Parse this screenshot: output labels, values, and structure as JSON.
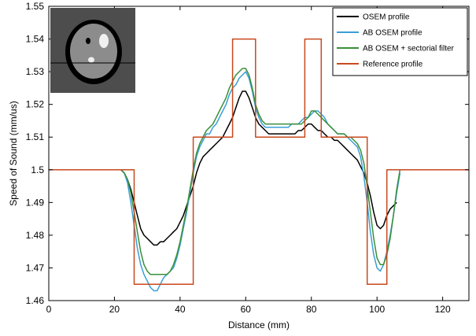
{
  "chart_data": {
    "type": "line",
    "title": "",
    "xlabel": "Distance (mm)",
    "ylabel": "Speed of Sound (mm/us)",
    "xlim": [
      0,
      128
    ],
    "ylim": [
      1.46,
      1.55
    ],
    "xticks": [
      0,
      20,
      40,
      60,
      80,
      100,
      120
    ],
    "yticks": [
      1.46,
      1.47,
      1.48,
      1.49,
      1.5,
      1.51,
      1.52,
      1.53,
      1.54,
      1.55
    ],
    "ytick_labels": [
      "1.46",
      "1.47",
      "1.48",
      "1.49",
      "1.5",
      "1.51",
      "1.52",
      "1.53",
      "1.54",
      "1.55"
    ],
    "grid": false,
    "legend_position": "top-right",
    "inset": "phantom-image",
    "series": [
      {
        "name": "OSEM profile",
        "color": "#000000",
        "x": [
          21,
          22,
          23,
          24,
          25,
          26,
          27,
          28,
          29,
          30,
          31,
          32,
          33,
          34,
          35,
          36,
          37,
          38,
          39,
          40,
          41,
          42,
          43,
          44,
          45,
          46,
          47,
          48,
          49,
          50,
          51,
          52,
          53,
          54,
          55,
          56,
          57,
          58,
          59,
          60,
          61,
          62,
          63,
          64,
          65,
          66,
          67,
          68,
          69,
          70,
          71,
          72,
          73,
          74,
          75,
          76,
          77,
          78,
          79,
          80,
          81,
          82,
          83,
          84,
          85,
          86,
          87,
          88,
          89,
          90,
          91,
          92,
          93,
          94,
          95,
          96,
          97,
          98,
          99,
          100,
          101,
          102,
          103,
          104,
          105,
          106
        ],
        "y": [
          1.5,
          1.5,
          1.499,
          1.497,
          1.494,
          1.49,
          1.486,
          1.482,
          1.48,
          1.479,
          1.478,
          1.477,
          1.477,
          1.478,
          1.478,
          1.479,
          1.48,
          1.481,
          1.482,
          1.484,
          1.486,
          1.489,
          1.492,
          1.495,
          1.499,
          1.502,
          1.504,
          1.505,
          1.506,
          1.507,
          1.508,
          1.509,
          1.51,
          1.512,
          1.514,
          1.516,
          1.519,
          1.522,
          1.524,
          1.524,
          1.522,
          1.519,
          1.516,
          1.514,
          1.513,
          1.512,
          1.511,
          1.511,
          1.511,
          1.511,
          1.511,
          1.511,
          1.511,
          1.511,
          1.511,
          1.512,
          1.512,
          1.513,
          1.514,
          1.514,
          1.513,
          1.512,
          1.512,
          1.511,
          1.51,
          1.51,
          1.509,
          1.509,
          1.508,
          1.507,
          1.506,
          1.505,
          1.504,
          1.503,
          1.501,
          1.499,
          1.496,
          1.492,
          1.487,
          1.483,
          1.482,
          1.483,
          1.486,
          1.488,
          1.489,
          1.49
        ]
      },
      {
        "name": "AB OSEM profile",
        "color": "#3a9fd6",
        "x": [
          22,
          23,
          24,
          25,
          26,
          27,
          28,
          29,
          30,
          31,
          32,
          33,
          34,
          35,
          36,
          37,
          38,
          39,
          40,
          41,
          42,
          43,
          44,
          45,
          46,
          47,
          48,
          49,
          50,
          51,
          52,
          53,
          54,
          55,
          56,
          57,
          58,
          59,
          60,
          61,
          62,
          63,
          64,
          65,
          66,
          67,
          68,
          69,
          70,
          71,
          72,
          73,
          74,
          75,
          76,
          77,
          78,
          79,
          80,
          81,
          82,
          83,
          84,
          85,
          86,
          87,
          88,
          89,
          90,
          91,
          92,
          93,
          94,
          95,
          96,
          97,
          98,
          99,
          100,
          101,
          102,
          103,
          104,
          105,
          106,
          107
        ],
        "y": [
          1.5,
          1.499,
          1.496,
          1.49,
          1.483,
          1.476,
          1.471,
          1.468,
          1.466,
          1.464,
          1.463,
          1.463,
          1.465,
          1.467,
          1.468,
          1.469,
          1.47,
          1.473,
          1.477,
          1.482,
          1.487,
          1.493,
          1.499,
          1.504,
          1.507,
          1.509,
          1.511,
          1.511,
          1.513,
          1.514,
          1.516,
          1.518,
          1.52,
          1.523,
          1.525,
          1.526,
          1.528,
          1.529,
          1.53,
          1.528,
          1.524,
          1.519,
          1.516,
          1.514,
          1.513,
          1.513,
          1.513,
          1.513,
          1.513,
          1.513,
          1.513,
          1.513,
          1.514,
          1.514,
          1.514,
          1.515,
          1.516,
          1.516,
          1.517,
          1.518,
          1.518,
          1.517,
          1.516,
          1.514,
          1.513,
          1.512,
          1.511,
          1.511,
          1.511,
          1.51,
          1.509,
          1.508,
          1.507,
          1.504,
          1.498,
          1.49,
          1.481,
          1.474,
          1.47,
          1.469,
          1.471,
          1.475,
          1.48,
          1.486,
          1.493,
          1.499
        ]
      },
      {
        "name": "AB OSEM + sectorial filter",
        "color": "#3a8f3a",
        "x": [
          22,
          23,
          24,
          25,
          26,
          27,
          28,
          29,
          30,
          31,
          32,
          33,
          34,
          35,
          36,
          37,
          38,
          39,
          40,
          41,
          42,
          43,
          44,
          45,
          46,
          47,
          48,
          49,
          50,
          51,
          52,
          53,
          54,
          55,
          56,
          57,
          58,
          59,
          60,
          61,
          62,
          63,
          64,
          65,
          66,
          67,
          68,
          69,
          70,
          71,
          72,
          73,
          74,
          75,
          76,
          77,
          78,
          79,
          80,
          81,
          82,
          83,
          84,
          85,
          86,
          87,
          88,
          89,
          90,
          91,
          92,
          93,
          94,
          95,
          96,
          97,
          98,
          99,
          100,
          101,
          102,
          103,
          104,
          105,
          106,
          107
        ],
        "y": [
          1.5,
          1.499,
          1.497,
          1.493,
          1.487,
          1.481,
          1.475,
          1.471,
          1.469,
          1.468,
          1.468,
          1.468,
          1.468,
          1.468,
          1.468,
          1.469,
          1.471,
          1.474,
          1.478,
          1.483,
          1.488,
          1.494,
          1.5,
          1.505,
          1.508,
          1.51,
          1.512,
          1.513,
          1.514,
          1.516,
          1.518,
          1.52,
          1.522,
          1.525,
          1.527,
          1.529,
          1.53,
          1.531,
          1.531,
          1.529,
          1.525,
          1.52,
          1.517,
          1.515,
          1.514,
          1.514,
          1.514,
          1.514,
          1.514,
          1.514,
          1.514,
          1.514,
          1.514,
          1.514,
          1.514,
          1.514,
          1.515,
          1.516,
          1.518,
          1.518,
          1.517,
          1.516,
          1.515,
          1.514,
          1.513,
          1.512,
          1.511,
          1.511,
          1.511,
          1.51,
          1.51,
          1.509,
          1.508,
          1.506,
          1.502,
          1.495,
          1.487,
          1.479,
          1.473,
          1.471,
          1.471,
          1.474,
          1.479,
          1.486,
          1.494,
          1.5
        ]
      },
      {
        "name": "Reference profile",
        "color": "#c8491e",
        "x": [
          0,
          26,
          26,
          44,
          44,
          56,
          56,
          63,
          63,
          78,
          78,
          83,
          83,
          97,
          97,
          103,
          103,
          128
        ],
        "y": [
          1.5,
          1.5,
          1.465,
          1.465,
          1.51,
          1.51,
          1.54,
          1.54,
          1.51,
          1.51,
          1.54,
          1.54,
          1.51,
          1.51,
          1.465,
          1.465,
          1.5,
          1.5
        ]
      }
    ]
  }
}
